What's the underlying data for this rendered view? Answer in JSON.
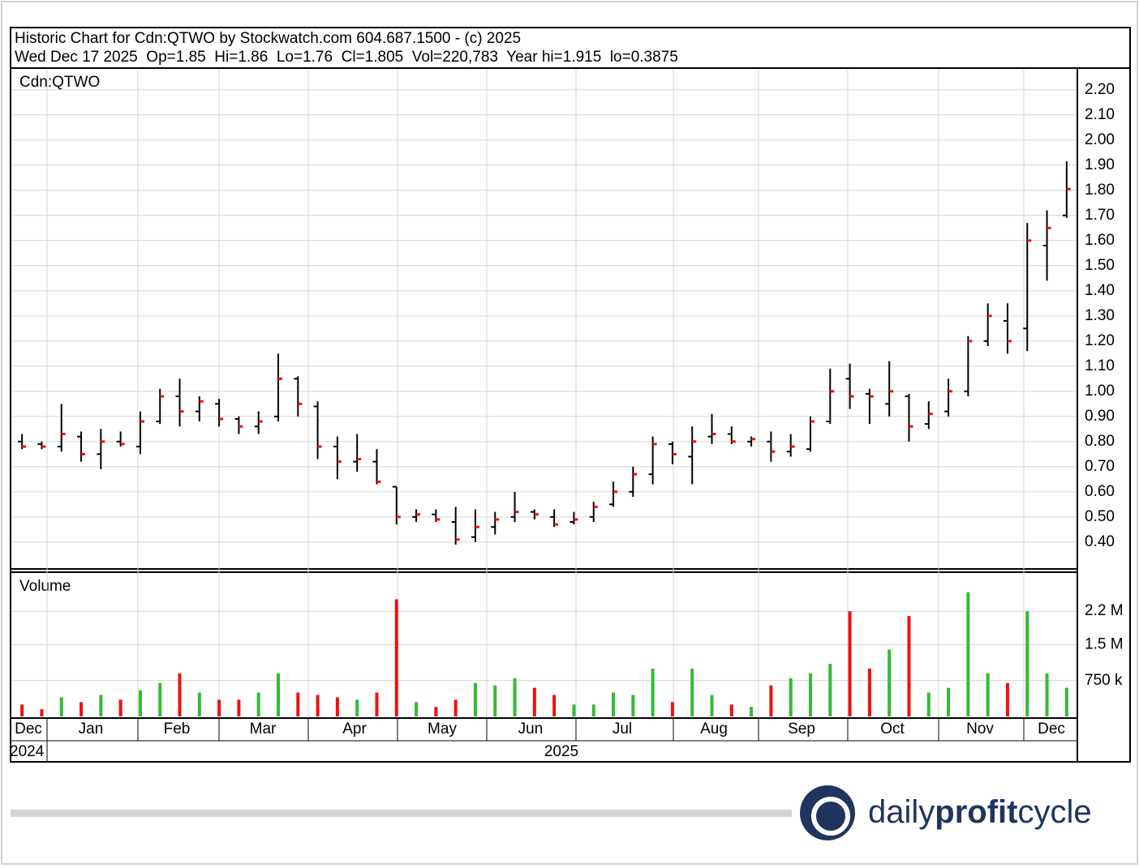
{
  "chart_data": {
    "type": "ohlc",
    "title": "Historic Chart for Cdn:QTWO by Stockwatch.com 604.687.1500 - (c) 2025",
    "subtitle": "Wed Dec 17 2025  Op=1.85  Hi=1.86  Lo=1.76  Cl=1.805  Vol=220,783  Year hi=1.915  lo=0.3875",
    "price_label": "Cdn:QTWO",
    "volume_label": "Volume",
    "months": [
      "Dec",
      "Jan",
      "Feb",
      "Mar",
      "Apr",
      "May",
      "Jun",
      "Jul",
      "Aug",
      "Sep",
      "Oct",
      "Nov",
      "Dec"
    ],
    "years": [
      "2024",
      "2025"
    ],
    "open": [
      0.8,
      0.79,
      0.78,
      0.82,
      0.75,
      0.8,
      0.78,
      0.88,
      0.98,
      0.92,
      0.95,
      0.89,
      0.86,
      0.9,
      1.05,
      0.94,
      0.78,
      0.72,
      0.72,
      0.62,
      0.5,
      0.51,
      0.48,
      0.42,
      0.46,
      0.5,
      0.52,
      0.5,
      0.48,
      0.5,
      0.55,
      0.6,
      0.67,
      0.79,
      0.74,
      0.82,
      0.83,
      0.8,
      0.8,
      0.76,
      0.77,
      0.88,
      1.05,
      0.99,
      0.95,
      0.98,
      0.87,
      0.92,
      1.0,
      1.2,
      1.28,
      1.25,
      1.58,
      1.7
    ],
    "high": [
      0.83,
      0.8,
      0.95,
      0.84,
      0.85,
      0.84,
      0.92,
      1.01,
      1.05,
      0.98,
      0.97,
      0.9,
      0.92,
      1.15,
      1.06,
      0.96,
      0.82,
      0.83,
      0.77,
      0.62,
      0.53,
      0.53,
      0.54,
      0.53,
      0.52,
      0.6,
      0.53,
      0.53,
      0.52,
      0.56,
      0.64,
      0.7,
      0.82,
      0.8,
      0.86,
      0.91,
      0.86,
      0.82,
      0.84,
      0.83,
      0.9,
      1.09,
      1.11,
      1.01,
      1.12,
      0.99,
      0.96,
      1.05,
      1.22,
      1.35,
      1.35,
      1.67,
      1.72,
      1.915
    ],
    "low": [
      0.77,
      0.77,
      0.76,
      0.72,
      0.69,
      0.78,
      0.75,
      0.87,
      0.86,
      0.88,
      0.86,
      0.83,
      0.83,
      0.88,
      0.9,
      0.73,
      0.65,
      0.68,
      0.63,
      0.47,
      0.48,
      0.48,
      0.39,
      0.4,
      0.43,
      0.48,
      0.49,
      0.46,
      0.47,
      0.48,
      0.54,
      0.58,
      0.63,
      0.71,
      0.63,
      0.79,
      0.79,
      0.78,
      0.72,
      0.74,
      0.76,
      0.87,
      0.93,
      0.87,
      0.9,
      0.8,
      0.85,
      0.9,
      0.98,
      1.18,
      1.15,
      1.16,
      1.44,
      1.69
    ],
    "close": [
      0.78,
      0.78,
      0.83,
      0.75,
      0.8,
      0.79,
      0.88,
      0.98,
      0.92,
      0.96,
      0.89,
      0.86,
      0.88,
      1.05,
      0.95,
      0.78,
      0.72,
      0.73,
      0.64,
      0.5,
      0.51,
      0.49,
      0.41,
      0.46,
      0.49,
      0.52,
      0.51,
      0.47,
      0.49,
      0.54,
      0.6,
      0.67,
      0.79,
      0.75,
      0.8,
      0.83,
      0.8,
      0.81,
      0.76,
      0.78,
      0.88,
      1.0,
      0.98,
      0.98,
      1.0,
      0.86,
      0.91,
      1.0,
      1.2,
      1.3,
      1.2,
      1.6,
      1.65,
      1.805
    ],
    "volume": [
      250000,
      150000,
      400000,
      300000,
      450000,
      350000,
      550000,
      700000,
      900000,
      500000,
      350000,
      350000,
      500000,
      900000,
      500000,
      450000,
      400000,
      350000,
      500000,
      2450000,
      300000,
      200000,
      350000,
      700000,
      650000,
      800000,
      600000,
      450000,
      250000,
      250000,
      500000,
      450000,
      1000000,
      300000,
      1000000,
      450000,
      250000,
      200000,
      650000,
      800000,
      900000,
      1100000,
      2200000,
      1000000,
      1400000,
      2100000,
      500000,
      600000,
      2600000,
      900000,
      700000,
      2200000,
      900000,
      600000
    ],
    "up_color": "#33bb33",
    "down_color": "#ee1111",
    "bar_color": "#000000",
    "ylim": [
      0.293,
      2.28
    ],
    "yticks": [
      {
        "value": 0.4,
        "label": "0.40"
      },
      {
        "value": 0.5,
        "label": "0.50"
      },
      {
        "value": 0.6,
        "label": "0.60"
      },
      {
        "value": 0.7,
        "label": "0.70"
      },
      {
        "value": 0.8,
        "label": "0.80"
      },
      {
        "value": 0.9,
        "label": "0.90"
      },
      {
        "value": 1.0,
        "label": "1.00"
      },
      {
        "value": 1.1,
        "label": "1.10"
      },
      {
        "value": 1.2,
        "label": "1.20"
      },
      {
        "value": 1.3,
        "label": "1.30"
      },
      {
        "value": 1.4,
        "label": "1.40"
      },
      {
        "value": 1.5,
        "label": "1.50"
      },
      {
        "value": 1.6,
        "label": "1.60"
      },
      {
        "value": 1.7,
        "label": "1.70"
      },
      {
        "value": 1.8,
        "label": "1.80"
      },
      {
        "value": 1.9,
        "label": "1.90"
      },
      {
        "value": 2.0,
        "label": "2.00"
      },
      {
        "value": 2.1,
        "label": "2.10"
      },
      {
        "value": 2.2,
        "label": "2.20"
      }
    ],
    "y2lim": [
      0,
      3000000
    ],
    "y2ticks": [
      {
        "value": 750000,
        "label": "750 k"
      },
      {
        "value": 1500000,
        "label": "1.5 M"
      },
      {
        "value": 2200000,
        "label": "2.2 M"
      }
    ],
    "grid": true
  },
  "logo": {
    "part1": "daily",
    "part2": "profit",
    "part3": "cycle"
  }
}
